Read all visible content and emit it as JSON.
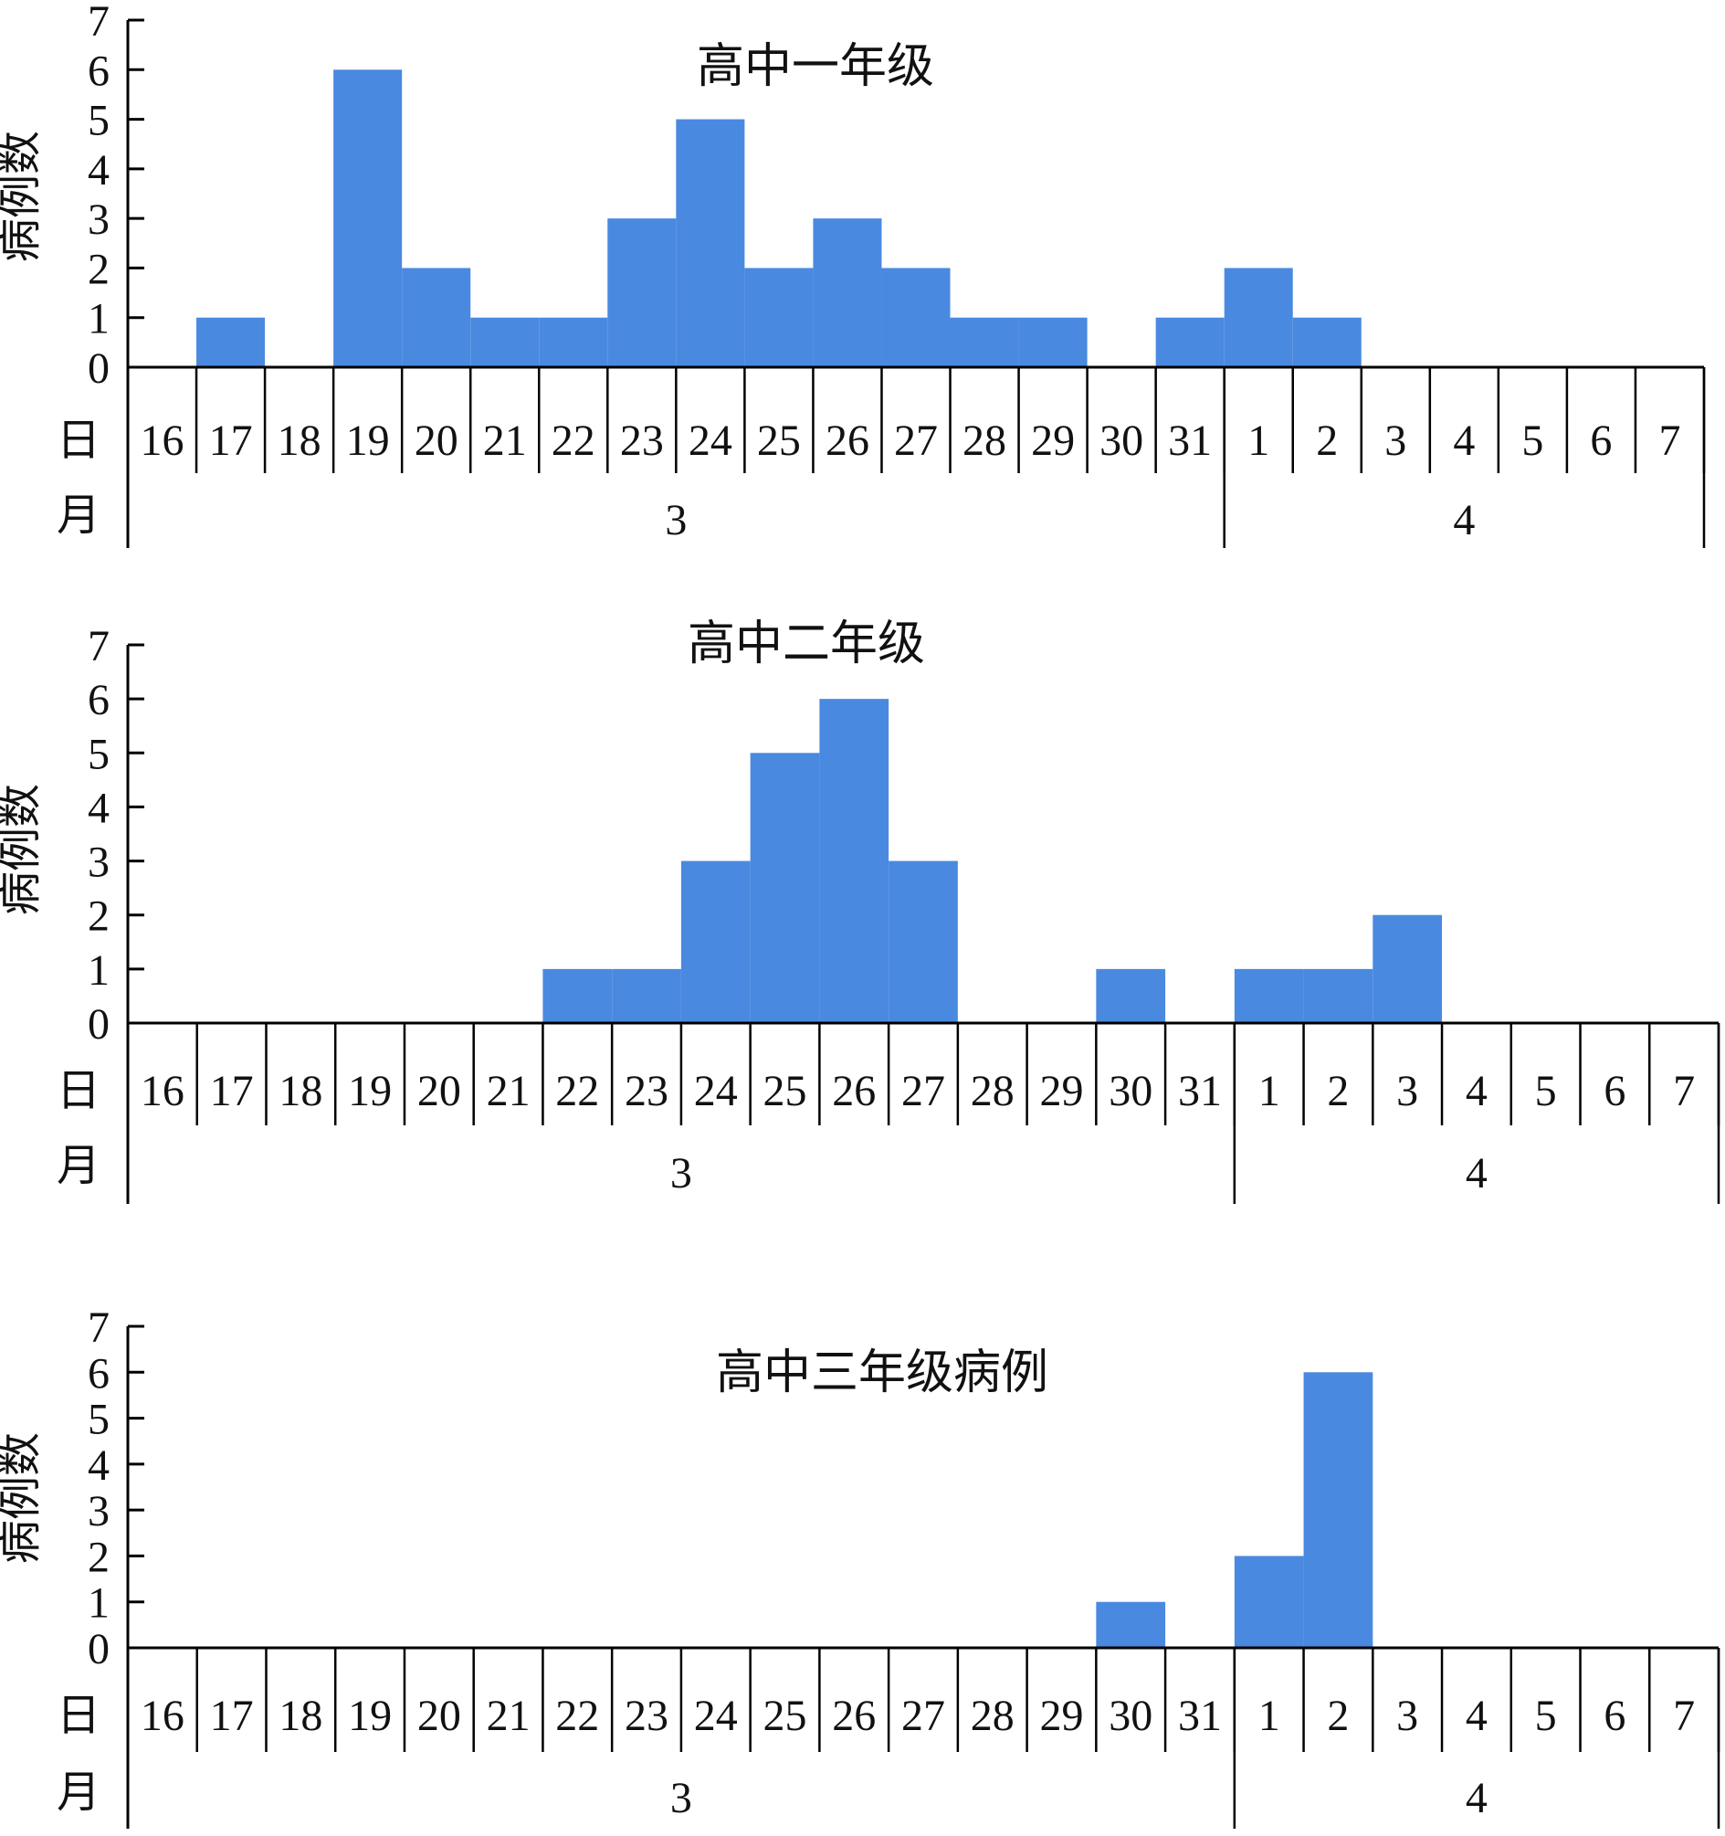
{
  "y_axis_label": "病例数",
  "row_label_day": "日",
  "row_label_month": "月",
  "bar_color": "#4a89e0",
  "chart_data": [
    {
      "type": "bar",
      "title": "高中一年级",
      "ylabel": "病例数",
      "ylim": [
        0,
        7
      ],
      "yticks": [
        0,
        1,
        2,
        3,
        4,
        5,
        6,
        7
      ],
      "categories": [
        "16",
        "17",
        "18",
        "19",
        "20",
        "21",
        "22",
        "23",
        "24",
        "25",
        "26",
        "27",
        "28",
        "29",
        "30",
        "31",
        "1",
        "2",
        "3",
        "4",
        "5",
        "6",
        "7"
      ],
      "values": [
        0,
        1,
        0,
        6,
        2,
        1,
        1,
        3,
        5,
        2,
        3,
        2,
        1,
        1,
        0,
        1,
        2,
        1,
        0,
        0,
        0,
        0,
        0
      ],
      "months": [
        {
          "label": "3",
          "from_index": 0,
          "to_index": 15
        },
        {
          "label": "4",
          "from_index": 16,
          "to_index": 22
        }
      ]
    },
    {
      "type": "bar",
      "title": "高中二年级",
      "ylabel": "病例数",
      "ylim": [
        0,
        7
      ],
      "yticks": [
        0,
        1,
        2,
        3,
        4,
        5,
        6,
        7
      ],
      "categories": [
        "16",
        "17",
        "18",
        "19",
        "20",
        "21",
        "22",
        "23",
        "24",
        "25",
        "26",
        "27",
        "28",
        "29",
        "30",
        "31",
        "1",
        "2",
        "3",
        "4",
        "5",
        "6",
        "7"
      ],
      "values": [
        0,
        0,
        0,
        0,
        0,
        0,
        1,
        1,
        3,
        5,
        6,
        3,
        0,
        0,
        1,
        0,
        1,
        1,
        2,
        0,
        0,
        0,
        0
      ],
      "months": [
        {
          "label": "3",
          "from_index": 0,
          "to_index": 15
        },
        {
          "label": "4",
          "from_index": 16,
          "to_index": 22
        }
      ]
    },
    {
      "type": "bar",
      "title": "高中三年级病例",
      "ylabel": "病例数",
      "ylim": [
        0,
        7
      ],
      "yticks": [
        0,
        1,
        2,
        3,
        4,
        5,
        6,
        7
      ],
      "categories": [
        "16",
        "17",
        "18",
        "19",
        "20",
        "21",
        "22",
        "23",
        "24",
        "25",
        "26",
        "27",
        "28",
        "29",
        "30",
        "31",
        "1",
        "2",
        "3",
        "4",
        "5",
        "6",
        "7"
      ],
      "values": [
        0,
        0,
        0,
        0,
        0,
        0,
        0,
        0,
        0,
        0,
        0,
        0,
        0,
        0,
        1,
        0,
        2,
        6,
        0,
        0,
        0,
        0,
        0
      ],
      "months": [
        {
          "label": "3",
          "from_index": 0,
          "to_index": 15
        },
        {
          "label": "4",
          "from_index": 16,
          "to_index": 22
        }
      ]
    }
  ]
}
